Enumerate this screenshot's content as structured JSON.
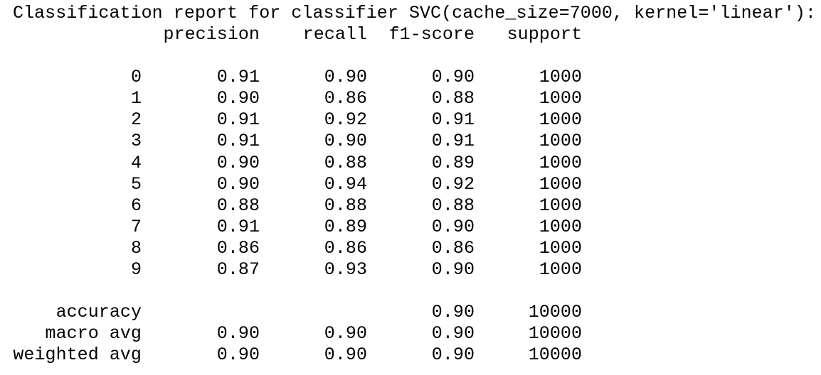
{
  "title": "Classification report for classifier SVC(cache_size=7000, kernel='linear'):",
  "headers": {
    "precision": "precision",
    "recall": "recall",
    "f1_score": "f1-score",
    "support": "support"
  },
  "rows": [
    {
      "label": "0",
      "precision": "0.91",
      "recall": "0.90",
      "f1_score": "0.90",
      "support": "1000"
    },
    {
      "label": "1",
      "precision": "0.90",
      "recall": "0.86",
      "f1_score": "0.88",
      "support": "1000"
    },
    {
      "label": "2",
      "precision": "0.91",
      "recall": "0.92",
      "f1_score": "0.91",
      "support": "1000"
    },
    {
      "label": "3",
      "precision": "0.91",
      "recall": "0.90",
      "f1_score": "0.91",
      "support": "1000"
    },
    {
      "label": "4",
      "precision": "0.90",
      "recall": "0.88",
      "f1_score": "0.89",
      "support": "1000"
    },
    {
      "label": "5",
      "precision": "0.90",
      "recall": "0.94",
      "f1_score": "0.92",
      "support": "1000"
    },
    {
      "label": "6",
      "precision": "0.88",
      "recall": "0.88",
      "f1_score": "0.88",
      "support": "1000"
    },
    {
      "label": "7",
      "precision": "0.91",
      "recall": "0.89",
      "f1_score": "0.90",
      "support": "1000"
    },
    {
      "label": "8",
      "precision": "0.86",
      "recall": "0.86",
      "f1_score": "0.86",
      "support": "1000"
    },
    {
      "label": "9",
      "precision": "0.87",
      "recall": "0.93",
      "f1_score": "0.90",
      "support": "1000"
    }
  ],
  "summary": [
    {
      "label": "accuracy",
      "precision": "",
      "recall": "",
      "f1_score": "0.90",
      "support": "10000"
    },
    {
      "label": "macro avg",
      "precision": "0.90",
      "recall": "0.90",
      "f1_score": "0.90",
      "support": "10000"
    },
    {
      "label": "weighted avg",
      "precision": "0.90",
      "recall": "0.90",
      "f1_score": "0.90",
      "support": "10000"
    }
  ]
}
